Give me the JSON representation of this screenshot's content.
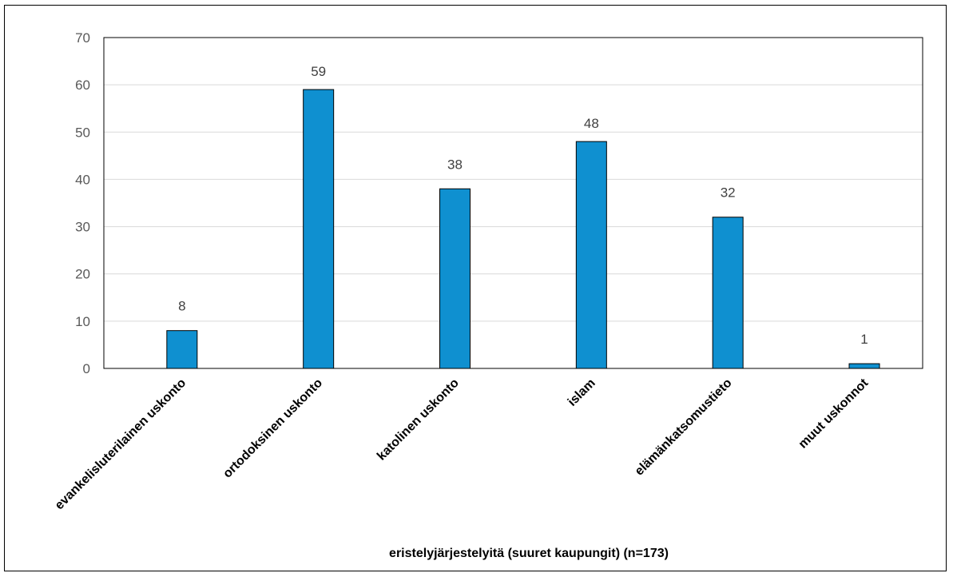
{
  "chart_data": {
    "type": "bar",
    "categories": [
      "evankelisluterilainen uskonto",
      "ortodoksinen uskonto",
      "katolinen uskonto",
      "islam",
      "elämänkatsomustieto",
      "muut uskonnot"
    ],
    "values": [
      8,
      59,
      38,
      48,
      32,
      1
    ],
    "title": "",
    "xlabel": "eristelyjärjestelyitä (suuret kaupungit) (n=173)",
    "ylabel": "",
    "ylim": [
      0,
      70
    ],
    "yticks": [
      0,
      10,
      20,
      30,
      40,
      50,
      60,
      70
    ],
    "grid": true,
    "legend": "none",
    "bar_color": "#0F90D0"
  }
}
